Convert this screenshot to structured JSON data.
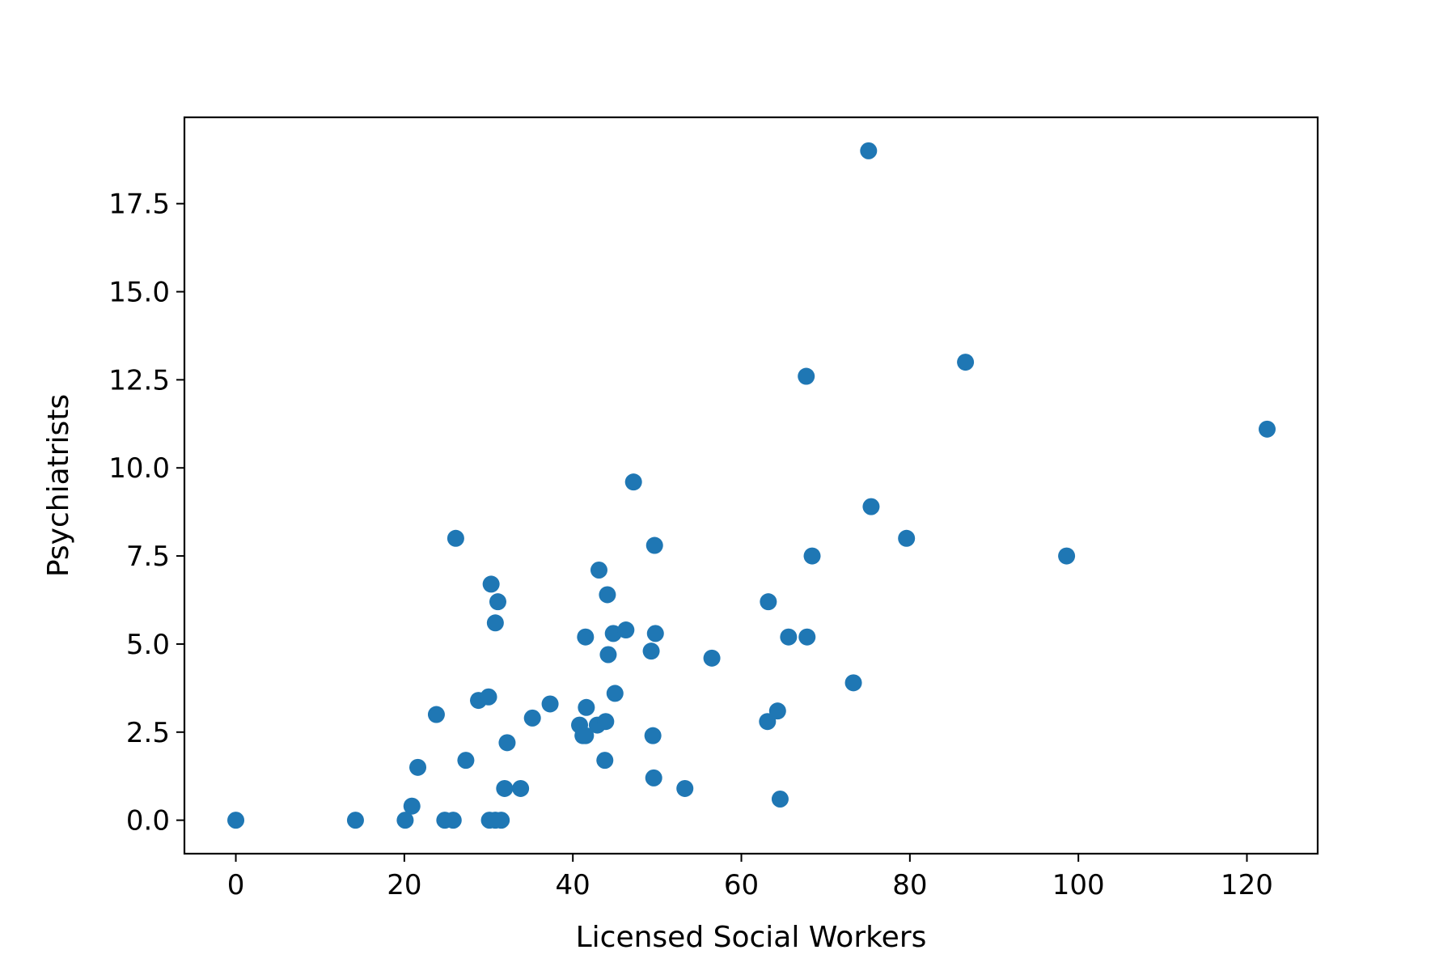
{
  "chart_data": {
    "type": "scatter",
    "title": "",
    "xlabel": "Licensed Social Workers",
    "ylabel": "Psychiatrists",
    "xlim": [
      -6.1,
      128.4
    ],
    "ylim": [
      -0.95,
      19.95
    ],
    "xticks": [
      0,
      20,
      40,
      60,
      80,
      100,
      120
    ],
    "xtick_labels": [
      "0",
      "20",
      "40",
      "60",
      "80",
      "100",
      "120"
    ],
    "yticks": [
      0,
      2.5,
      5,
      7.5,
      10,
      12.5,
      15,
      17.5
    ],
    "ytick_labels": [
      "0.0",
      "2.5",
      "5.0",
      "7.5",
      "10.0",
      "12.5",
      "15.0",
      "17.5"
    ],
    "grid": false,
    "marker_color": "#1f77b4",
    "series": [
      {
        "points": [
          [
            0,
            0
          ],
          [
            14.2,
            0
          ],
          [
            20.1,
            0
          ],
          [
            24.8,
            0
          ],
          [
            25.8,
            0
          ],
          [
            30.1,
            0
          ],
          [
            30.8,
            0
          ],
          [
            31.5,
            0
          ],
          [
            20.9,
            0.4
          ],
          [
            21.6,
            1.5
          ],
          [
            23.8,
            3.0
          ],
          [
            26.1,
            8.0
          ],
          [
            27.3,
            1.7
          ],
          [
            28.8,
            3.4
          ],
          [
            30.0,
            3.5
          ],
          [
            30.3,
            6.7
          ],
          [
            30.8,
            5.6
          ],
          [
            31.1,
            6.2
          ],
          [
            31.9,
            0.9
          ],
          [
            32.2,
            2.2
          ],
          [
            33.8,
            0.9
          ],
          [
            35.2,
            2.9
          ],
          [
            37.3,
            3.3
          ],
          [
            40.8,
            2.7
          ],
          [
            41.2,
            2.4
          ],
          [
            41.5,
            2.4
          ],
          [
            41.5,
            5.2
          ],
          [
            41.6,
            3.2
          ],
          [
            42.9,
            2.7
          ],
          [
            43.1,
            7.1
          ],
          [
            43.8,
            1.7
          ],
          [
            43.9,
            2.8
          ],
          [
            44.1,
            6.4
          ],
          [
            44.2,
            4.7
          ],
          [
            44.8,
            5.3
          ],
          [
            45.0,
            3.6
          ],
          [
            46.3,
            5.4
          ],
          [
            47.2,
            9.6
          ],
          [
            49.3,
            4.8
          ],
          [
            49.5,
            2.4
          ],
          [
            49.6,
            1.2
          ],
          [
            49.7,
            7.8
          ],
          [
            49.8,
            5.3
          ],
          [
            53.3,
            0.9
          ],
          [
            56.5,
            4.6
          ],
          [
            63.1,
            2.8
          ],
          [
            63.2,
            6.2
          ],
          [
            64.3,
            3.1
          ],
          [
            64.6,
            0.6
          ],
          [
            65.6,
            5.2
          ],
          [
            67.7,
            12.6
          ],
          [
            67.8,
            5.2
          ],
          [
            68.4,
            7.5
          ],
          [
            73.3,
            3.9
          ],
          [
            75.1,
            19.0
          ],
          [
            75.4,
            8.9
          ],
          [
            79.6,
            8.0
          ],
          [
            86.6,
            13.0
          ],
          [
            98.6,
            7.5
          ],
          [
            122.4,
            11.1
          ]
        ]
      }
    ]
  }
}
